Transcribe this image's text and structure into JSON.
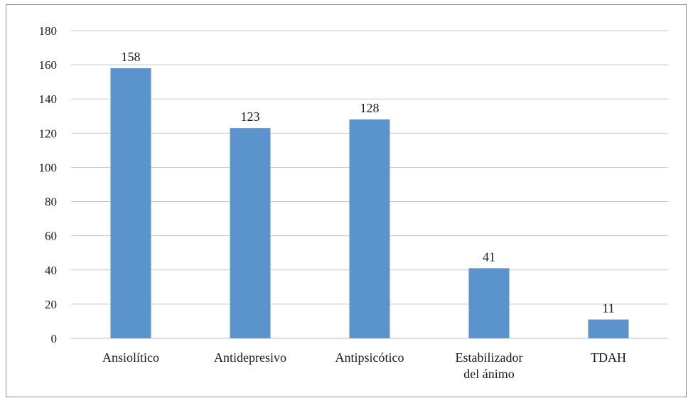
{
  "chart_data": {
    "type": "bar",
    "categories": [
      [
        "Ansiolítico"
      ],
      [
        "Antidepresivo"
      ],
      [
        "Antipsicótico"
      ],
      [
        "Estabilizador",
        "del ánimo"
      ],
      [
        "TDAH"
      ]
    ],
    "values": [
      158,
      123,
      128,
      41,
      11
    ],
    "data_labels": [
      "158",
      "123",
      "128",
      "41",
      "11"
    ],
    "ylim": [
      0,
      180
    ],
    "y_ticks": [
      "0",
      "20",
      "40",
      "60",
      "80",
      "100",
      "120",
      "140",
      "160",
      "180"
    ],
    "grid": true,
    "bar_color": "#5b93cc",
    "grid_color": "#c9c9c9",
    "title": "",
    "xlabel": "",
    "ylabel": ""
  }
}
